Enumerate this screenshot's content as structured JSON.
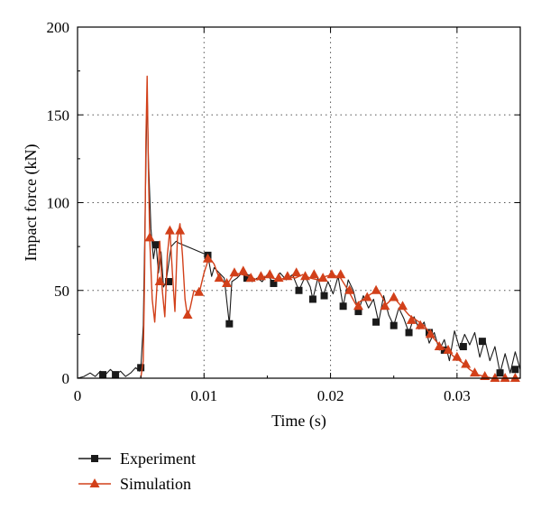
{
  "chart_data": {
    "type": "line",
    "xlabel": "Time (s)",
    "ylabel": "Impact force (kN)",
    "xlim": [
      0,
      0.035
    ],
    "ylim": [
      0,
      200
    ],
    "xticks": [
      0,
      0.01,
      0.02,
      0.03
    ],
    "xtick_labels": [
      "0",
      "0.01",
      "0.02",
      "0.03"
    ],
    "yticks": [
      0,
      50,
      100,
      150,
      200
    ],
    "ytick_labels": [
      "0",
      "50",
      "100",
      "150",
      "200"
    ],
    "grid": "dotted",
    "legend_position": "bottom-left",
    "series": [
      {
        "name": "Experiment",
        "color": "#1a1a1a",
        "marker": "square",
        "points": [
          [
            0,
            0
          ],
          [
            0.0005,
            1
          ],
          [
            0.001,
            3
          ],
          [
            0.0014,
            1
          ],
          [
            0.0018,
            4
          ],
          [
            0.0022,
            2
          ],
          [
            0.0026,
            5
          ],
          [
            0.003,
            2
          ],
          [
            0.0034,
            4
          ],
          [
            0.0038,
            1
          ],
          [
            0.0042,
            3
          ],
          [
            0.0046,
            6
          ],
          [
            0.0049,
            4
          ],
          [
            0.005,
            5
          ],
          [
            0.0052,
            30
          ],
          [
            0.0054,
            120
          ],
          [
            0.0055,
            165
          ],
          [
            0.0056,
            125
          ],
          [
            0.0058,
            85
          ],
          [
            0.006,
            68
          ],
          [
            0.0062,
            77
          ],
          [
            0.0064,
            60
          ],
          [
            0.0066,
            72
          ],
          [
            0.0068,
            52
          ],
          [
            0.007,
            55
          ],
          [
            0.0074,
            75
          ],
          [
            0.0078,
            78
          ],
          [
            0.008,
            77
          ],
          [
            0.009,
            74
          ],
          [
            0.0103,
            70
          ],
          [
            0.0106,
            58
          ],
          [
            0.0108,
            63
          ],
          [
            0.0112,
            60
          ],
          [
            0.0116,
            57
          ],
          [
            0.012,
            31
          ],
          [
            0.0122,
            55
          ],
          [
            0.0126,
            57
          ],
          [
            0.013,
            60
          ],
          [
            0.0134,
            58
          ],
          [
            0.0138,
            55
          ],
          [
            0.0142,
            57
          ],
          [
            0.0146,
            55
          ],
          [
            0.015,
            59
          ],
          [
            0.0155,
            54
          ],
          [
            0.016,
            60
          ],
          [
            0.0165,
            56
          ],
          [
            0.017,
            59
          ],
          [
            0.0175,
            50
          ],
          [
            0.018,
            58
          ],
          [
            0.0184,
            52
          ],
          [
            0.0186,
            45
          ],
          [
            0.019,
            57
          ],
          [
            0.0194,
            47
          ],
          [
            0.0198,
            55
          ],
          [
            0.0202,
            48
          ],
          [
            0.0206,
            58
          ],
          [
            0.021,
            41
          ],
          [
            0.0214,
            56
          ],
          [
            0.0218,
            50
          ],
          [
            0.0222,
            38
          ],
          [
            0.0226,
            47
          ],
          [
            0.023,
            40
          ],
          [
            0.0234,
            45
          ],
          [
            0.0238,
            32
          ],
          [
            0.0242,
            47
          ],
          [
            0.0246,
            36
          ],
          [
            0.025,
            30
          ],
          [
            0.0254,
            40
          ],
          [
            0.0258,
            34
          ],
          [
            0.0262,
            26
          ],
          [
            0.0266,
            35
          ],
          [
            0.027,
            28
          ],
          [
            0.0274,
            32
          ],
          [
            0.0278,
            20
          ],
          [
            0.0282,
            26
          ],
          [
            0.0286,
            16
          ],
          [
            0.029,
            22
          ],
          [
            0.0294,
            10
          ],
          [
            0.0298,
            27
          ],
          [
            0.0302,
            17
          ],
          [
            0.0306,
            25
          ],
          [
            0.031,
            19
          ],
          [
            0.0314,
            26
          ],
          [
            0.0318,
            12
          ],
          [
            0.0322,
            22
          ],
          [
            0.0326,
            10
          ],
          [
            0.033,
            18
          ],
          [
            0.0334,
            3
          ],
          [
            0.0338,
            14
          ],
          [
            0.0342,
            3
          ],
          [
            0.0346,
            15
          ],
          [
            0.035,
            5
          ]
        ],
        "marker_points": [
          [
            0.002,
            2
          ],
          [
            0.003,
            2
          ],
          [
            0.005,
            6
          ],
          [
            0.0062,
            76
          ],
          [
            0.0072,
            55
          ],
          [
            0.0103,
            70
          ],
          [
            0.012,
            31
          ],
          [
            0.0134,
            57
          ],
          [
            0.0155,
            54
          ],
          [
            0.0175,
            50
          ],
          [
            0.0186,
            45
          ],
          [
            0.0195,
            47
          ],
          [
            0.021,
            41
          ],
          [
            0.0222,
            38
          ],
          [
            0.0236,
            32
          ],
          [
            0.025,
            30
          ],
          [
            0.0262,
            26
          ],
          [
            0.0278,
            26
          ],
          [
            0.029,
            16
          ],
          [
            0.0305,
            18
          ],
          [
            0.032,
            21
          ],
          [
            0.0334,
            3
          ],
          [
            0.0346,
            5
          ]
        ]
      },
      {
        "name": "Simulation",
        "color": "#d2401a",
        "marker": "triangle",
        "points": [
          [
            0.005,
            0
          ],
          [
            0.0052,
            10
          ],
          [
            0.0053,
            60
          ],
          [
            0.0054,
            135
          ],
          [
            0.0055,
            172
          ],
          [
            0.0056,
            120
          ],
          [
            0.0057,
            80
          ],
          [
            0.0059,
            45
          ],
          [
            0.0061,
            32
          ],
          [
            0.0063,
            55
          ],
          [
            0.0065,
            78
          ],
          [
            0.0067,
            50
          ],
          [
            0.0069,
            35
          ],
          [
            0.0071,
            70
          ],
          [
            0.0073,
            85
          ],
          [
            0.0075,
            60
          ],
          [
            0.0077,
            38
          ],
          [
            0.0079,
            80
          ],
          [
            0.0081,
            88
          ],
          [
            0.0083,
            70
          ],
          [
            0.0085,
            45
          ],
          [
            0.0087,
            35
          ],
          [
            0.0089,
            40
          ],
          [
            0.0092,
            50
          ],
          [
            0.0096,
            48
          ],
          [
            0.01,
            60
          ],
          [
            0.0104,
            69
          ],
          [
            0.0108,
            65
          ],
          [
            0.0112,
            57
          ],
          [
            0.0118,
            53
          ],
          [
            0.0124,
            60
          ],
          [
            0.013,
            59
          ],
          [
            0.0136,
            58
          ],
          [
            0.0142,
            56
          ],
          [
            0.0148,
            58
          ],
          [
            0.0154,
            57
          ],
          [
            0.016,
            56
          ],
          [
            0.0166,
            58
          ],
          [
            0.0172,
            57
          ],
          [
            0.0178,
            59
          ],
          [
            0.0184,
            57
          ],
          [
            0.019,
            56
          ],
          [
            0.0196,
            58
          ],
          [
            0.0202,
            59
          ],
          [
            0.0208,
            57
          ],
          [
            0.0214,
            50
          ],
          [
            0.022,
            42
          ],
          [
            0.0226,
            45
          ],
          [
            0.0232,
            48
          ],
          [
            0.0238,
            50
          ],
          [
            0.0244,
            42
          ],
          [
            0.025,
            46
          ],
          [
            0.0256,
            41
          ],
          [
            0.0262,
            36
          ],
          [
            0.0268,
            33
          ],
          [
            0.0274,
            30
          ],
          [
            0.028,
            24
          ],
          [
            0.0286,
            19
          ],
          [
            0.0292,
            16
          ],
          [
            0.0298,
            12
          ],
          [
            0.0304,
            9
          ],
          [
            0.031,
            5
          ],
          [
            0.0316,
            2
          ],
          [
            0.0322,
            1
          ],
          [
            0.0328,
            0
          ],
          [
            0.0334,
            0
          ],
          [
            0.034,
            0
          ],
          [
            0.035,
            0
          ]
        ],
        "marker_points": [
          [
            0.0057,
            80
          ],
          [
            0.0065,
            55
          ],
          [
            0.0073,
            84
          ],
          [
            0.0081,
            84
          ],
          [
            0.0087,
            36
          ],
          [
            0.0096,
            49
          ],
          [
            0.0103,
            68
          ],
          [
            0.0112,
            57
          ],
          [
            0.0118,
            54
          ],
          [
            0.0124,
            60
          ],
          [
            0.0131,
            61
          ],
          [
            0.0137,
            57
          ],
          [
            0.0145,
            58
          ],
          [
            0.0152,
            59
          ],
          [
            0.0159,
            57
          ],
          [
            0.0166,
            58
          ],
          [
            0.0173,
            60
          ],
          [
            0.018,
            58
          ],
          [
            0.0187,
            59
          ],
          [
            0.0194,
            57
          ],
          [
            0.0201,
            59
          ],
          [
            0.0208,
            59
          ],
          [
            0.0215,
            50
          ],
          [
            0.0222,
            41
          ],
          [
            0.0229,
            46
          ],
          [
            0.0236,
            50
          ],
          [
            0.0243,
            41
          ],
          [
            0.025,
            46
          ],
          [
            0.0257,
            41
          ],
          [
            0.0264,
            33
          ],
          [
            0.0271,
            30
          ],
          [
            0.0279,
            25
          ],
          [
            0.0286,
            18
          ],
          [
            0.0293,
            16
          ],
          [
            0.03,
            12
          ],
          [
            0.0307,
            8
          ],
          [
            0.0314,
            3
          ],
          [
            0.0322,
            1
          ],
          [
            0.033,
            0
          ],
          [
            0.0338,
            0
          ],
          [
            0.0346,
            0
          ]
        ]
      }
    ]
  }
}
